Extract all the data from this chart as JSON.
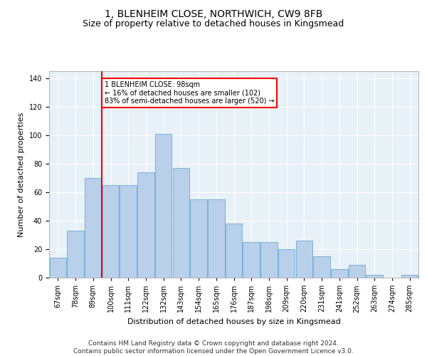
{
  "title": "1, BLENHEIM CLOSE, NORTHWICH, CW9 8FB",
  "subtitle": "Size of property relative to detached houses in Kingsmead",
  "xlabel": "Distribution of detached houses by size in Kingsmead",
  "ylabel": "Number of detached properties",
  "bins": [
    "67sqm",
    "78sqm",
    "89sqm",
    "100sqm",
    "111sqm",
    "122sqm",
    "132sqm",
    "143sqm",
    "154sqm",
    "165sqm",
    "176sqm",
    "187sqm",
    "198sqm",
    "209sqm",
    "220sqm",
    "231sqm",
    "241sqm",
    "252sqm",
    "263sqm",
    "274sqm",
    "285sqm"
  ],
  "bar_values": [
    14,
    33,
    70,
    65,
    65,
    74,
    101,
    77,
    55,
    55,
    38,
    25,
    25,
    20,
    26,
    15,
    6,
    9,
    2,
    0,
    2
  ],
  "bar_color": "#b8d0ea",
  "bar_edge_color": "#6aaad4",
  "vline_x_index": 3,
  "vline_color": "red",
  "annotation_text": "1 BLENHEIM CLOSE: 98sqm\n← 16% of detached houses are smaller (102)\n83% of semi-detached houses are larger (520) →",
  "annotation_box_color": "white",
  "annotation_box_edge_color": "red",
  "ylim": [
    0,
    145
  ],
  "yticks": [
    0,
    20,
    40,
    60,
    80,
    100,
    120,
    140
  ],
  "footer_text": "Contains HM Land Registry data © Crown copyright and database right 2024.\nContains public sector information licensed under the Open Government Licence v3.0.",
  "bg_color": "#e8f0f8",
  "grid_color": "#ffffff",
  "title_fontsize": 10,
  "subtitle_fontsize": 9,
  "axis_label_fontsize": 8,
  "tick_fontsize": 7,
  "footer_fontsize": 6.5
}
